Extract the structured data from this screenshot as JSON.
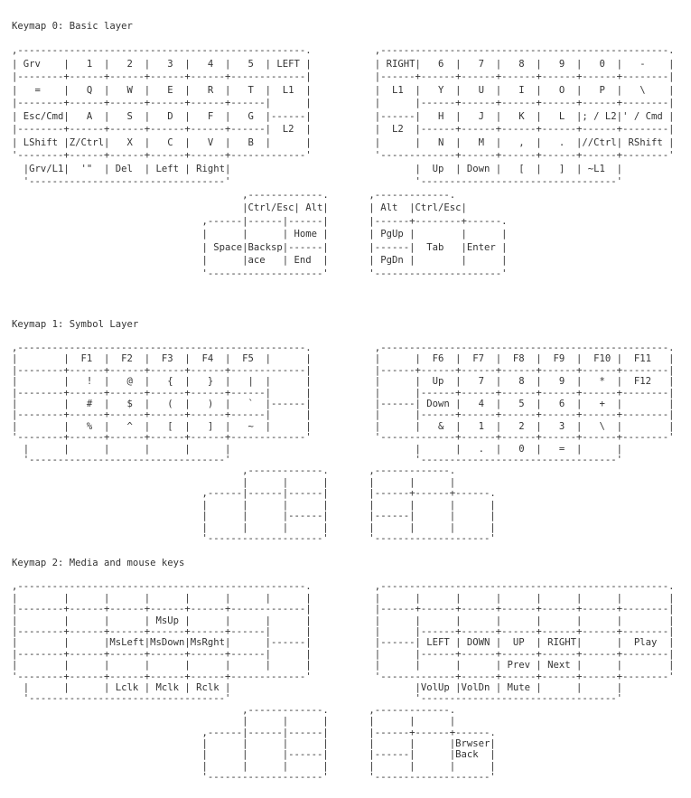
{
  "page": {
    "text_color": "#333333",
    "background_color": "#ffffff"
  },
  "keymaps": [
    {
      "title": "Keymap 0: Basic layer",
      "art": [
        ",--------------------------------------------------.           ,--------------------------------------------------.",
        "| Grv    |   1  |   2  |   3  |   4  |   5  | LEFT |           | RIGHT|   6  |   7  |   8  |   9  |   0  |   -    |",
        "|--------+------+------+------+------+-------------|           |------+------+------+------+------+------+--------|",
        "|   =    |   Q  |   W  |   E  |   R  |   T  |  L1  |           |  L1  |   Y  |   U  |   I  |   O  |   P  |   \\    |",
        "|--------+------+------+------+------+------|      |           |      |------+------+------+------+------+--------|",
        "| Esc/Cmd|   A  |   S  |   D  |   F  |   G  |------|           |------|   H  |   J  |   K  |   L  |; / L2|' / Cmd |",
        "|--------+------+------+------+------+------|  L2  |           |  L2  |------+------+------+------+------+--------|",
        "| LShift |Z/Ctrl|   X  |   C  |   V  |   B  |      |           |      |   N  |   M  |   ,  |   .  |//Ctrl| RShift |",
        "'--------+------+------+------+------+-------------'           '-------------+------+------+------+------+--------'",
        "  |Grv/L1|  '\"  | Del  | Left | Right|                                |  Up  | Down |   [  |   ]  | ~L1  |",
        "  '----------------------------------'                                '----------------------------------'",
        "                                        ,-------------.       ,-------------.",
        "                                        |Ctrl/Esc| Alt|       | Alt  |Ctrl/Esc|",
        "                                 ,------|------|------|       |------+--------+------.",
        "                                 |      |      | Home |       | PgUp |        |      |",
        "                                 | Space|Backsp|------|       |------|  Tab   |Enter |",
        "                                 |      |ace   | End  |       | PgDn |        |      |",
        "                                 '--------------------'       '----------------------'"
      ]
    },
    {
      "title": "Keymap 1: Symbol Layer",
      "art": [
        ",--------------------------------------------------.           ,--------------------------------------------------.",
        "|        |  F1  |  F2  |  F3  |  F4  |  F5  |      |           |      |  F6  |  F7  |  F8  |  F9  |  F10 |  F11   |",
        "|--------+------+------+------+------+-------------|           |------+------+------+------+------+------+--------|",
        "|        |   !  |   @  |   {  |   }  |   |  |      |           |      |  Up  |   7  |   8  |   9  |   *  |  F12   |",
        "|--------+------+------+------+------+------|      |           |      |------+------+------+------+------+--------|",
        "|        |   #  |   $  |   (  |   )  |   `  |------|           |------| Down |   4  |   5  |   6  |   +  |        |",
        "|--------+------+------+------+------+------|      |           |      |------+------+------+------+------+--------|",
        "|        |   %  |   ^  |   [  |   ]  |   ~  |      |           |      |   &  |   1  |   2  |   3  |   \\  |        |",
        "'--------+------+------+------+------+-------------'           '-------------+------+------+------+------+--------'",
        "  |      |      |      |      |      |                                |      |   .  |   0  |   =  |      |",
        "  '----------------------------------'                                '----------------------------------'",
        "                                        ,-------------.       ,-------------.",
        "                                        |      |      |       |      |      |",
        "                                 ,------|------|------|       |------+------+------.",
        "                                 |      |      |      |       |      |      |      |",
        "                                 |      |      |------|       |------|      |      |",
        "                                 |      |      |      |       |      |      |      |",
        "                                 '--------------------'       '--------------------'"
      ]
    },
    {
      "title": "Keymap 2: Media and mouse keys",
      "art": [
        ",--------------------------------------------------.           ,--------------------------------------------------.",
        "|        |      |      |      |      |      |      |           |      |      |      |      |      |      |        |",
        "|--------+------+------+------+------+-------------|           |------+------+------+------+------+------+--------|",
        "|        |      |      | MsUp |      |      |      |           |      |      |      |      |      |      |        |",
        "|--------+------+------+------+------+------|      |           |      |------+------+------+------+------+--------|",
        "|        |      |MsLeft|MsDown|MsRght|      |------|           |------| LEFT | DOWN |  UP  | RIGHT|      |  Play  |",
        "|--------+------+------+------+------+------|      |           |      |------+------+------+------+------+--------|",
        "|        |      |      |      |      |      |      |           |      |      |      | Prev | Next |      |        |",
        "'--------+------+------+------+------+-------------'           '-------------+------+------+------+------+--------'",
        "  |      |      | Lclk | Mclk | Rclk |                                |VolUp |VolDn | Mute |      |      |",
        "  '----------------------------------'                                '----------------------------------'",
        "                                        ,-------------.       ,-------------.",
        "                                        |      |      |       |      |      |",
        "                                 ,------|------|------|       |------+------+------.",
        "                                 |      |      |      |       |      |      |Brwser|",
        "                                 |      |      |------|       |------|      |Back  |",
        "                                 |      |      |      |       |      |      |      |",
        "                                 '--------------------'       '--------------------'"
      ]
    }
  ]
}
